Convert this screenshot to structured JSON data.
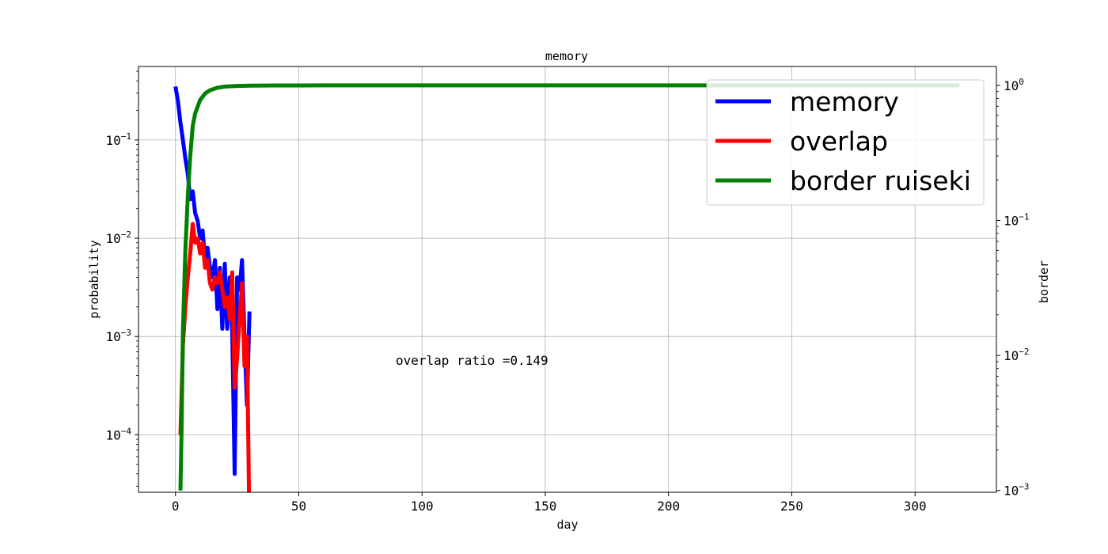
{
  "chart_data": {
    "type": "line",
    "title": "memory",
    "xlabel": "day",
    "ylabel": "probability",
    "y2label": "border",
    "annotation": "overlap ratio =0.149",
    "xlim": [
      -15,
      333
    ],
    "ylim": [
      2.6e-05,
      0.56
    ],
    "y2lim": [
      0.00097,
      1.38
    ],
    "yscale": "log",
    "y2scale": "log",
    "grid": true,
    "legend_position": "top-right",
    "x_ticks": [
      0,
      50,
      100,
      150,
      200,
      250,
      300
    ],
    "y_ticks": [
      {
        "value": 0.0001,
        "base": "10",
        "exp": "−4"
      },
      {
        "value": 0.001,
        "base": "10",
        "exp": "−3"
      },
      {
        "value": 0.01,
        "base": "10",
        "exp": "−2"
      },
      {
        "value": 0.1,
        "base": "10",
        "exp": "−1"
      }
    ],
    "y2_ticks": [
      {
        "value": 0.001,
        "base": "10",
        "exp": "−3"
      },
      {
        "value": 0.01,
        "base": "10",
        "exp": "−2"
      },
      {
        "value": 0.1,
        "base": "10",
        "exp": "−1"
      },
      {
        "value": 1,
        "base": "10",
        "exp": "0"
      }
    ],
    "series": [
      {
        "name": "memory",
        "color": "#0000ff",
        "axis": "left",
        "x": [
          0,
          1,
          2,
          3,
          4,
          5,
          6,
          7,
          8,
          9,
          10,
          11,
          12,
          13,
          14,
          15,
          16,
          17,
          18,
          19,
          20,
          21,
          22,
          23,
          24,
          25,
          26,
          27,
          28,
          29,
          30
        ],
        "y": [
          0.35,
          0.25,
          0.15,
          0.1,
          0.065,
          0.045,
          0.025,
          0.03,
          0.018,
          0.015,
          0.01,
          0.012,
          0.006,
          0.008,
          0.005,
          0.004,
          0.006,
          0.0019,
          0.005,
          0.0012,
          0.0055,
          0.0012,
          0.004,
          0.0012,
          4e-05,
          0.004,
          0.003,
          0.006,
          0.001,
          0.0002,
          0.0018
        ]
      },
      {
        "name": "overlap",
        "color": "#ff0000",
        "axis": "left",
        "x": [
          2,
          3,
          4,
          5,
          6,
          7,
          8,
          9,
          10,
          11,
          12,
          13,
          14,
          15,
          16,
          17,
          18,
          19,
          20,
          21,
          22,
          23,
          24,
          25,
          26,
          27,
          28,
          29,
          30
        ],
        "y": [
          0.0001,
          0.0008,
          0.002,
          0.004,
          0.007,
          0.014,
          0.009,
          0.01,
          0.007,
          0.009,
          0.005,
          0.006,
          0.0035,
          0.003,
          0.004,
          0.0035,
          0.0045,
          0.003,
          0.002,
          0.0025,
          0.0015,
          0.0045,
          0.0003,
          0.0006,
          0.0015,
          0.0035,
          0.0005,
          0.001,
          1e-05
        ]
      },
      {
        "name": "border ruiseki",
        "color": "#008000",
        "axis": "right",
        "x": [
          2,
          2.5,
          3,
          4,
          5,
          6,
          7,
          8,
          10,
          12,
          14,
          17,
          20,
          25,
          30,
          40,
          60,
          100,
          200,
          318
        ],
        "y": [
          0.001,
          0.003,
          0.015,
          0.06,
          0.15,
          0.3,
          0.5,
          0.62,
          0.78,
          0.87,
          0.92,
          0.96,
          0.98,
          0.99,
          0.995,
          0.998,
          1.0,
          1.0,
          1.0,
          1.0
        ]
      }
    ]
  }
}
